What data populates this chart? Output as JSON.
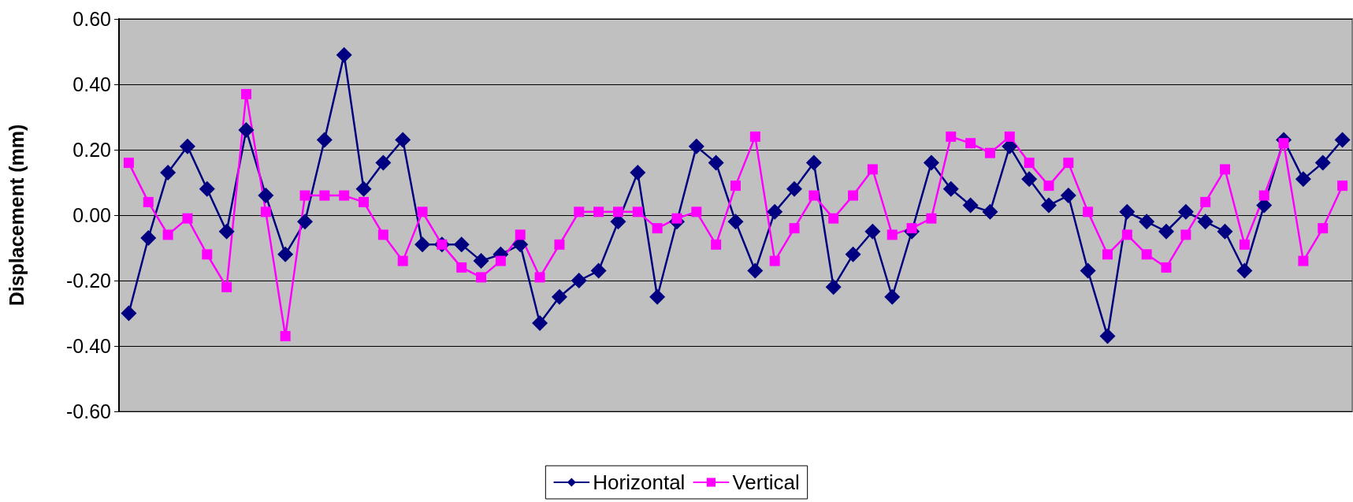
{
  "chart_data": {
    "type": "line",
    "ylabel": "Displacement (mm)",
    "categories": [
      null,
      null,
      null,
      null,
      null,
      null,
      null,
      null,
      null,
      null,
      null,
      null,
      null,
      null,
      null,
      null,
      null,
      null,
      null,
      null,
      null,
      null,
      null,
      null,
      null,
      null,
      null,
      null,
      null,
      null,
      null,
      null,
      null,
      null,
      null,
      null,
      null,
      null,
      null,
      null,
      null,
      null,
      null,
      null,
      null,
      null,
      null,
      null,
      null,
      null,
      null,
      null,
      null,
      null,
      null,
      null,
      null,
      null,
      null,
      null,
      null,
      null,
      null
    ],
    "series": [
      {
        "name": "Horizontal",
        "color": "#000080",
        "marker": "diamond",
        "values": [
          -0.3,
          -0.07,
          0.13,
          0.21,
          0.08,
          -0.05,
          0.26,
          0.06,
          -0.12,
          -0.02,
          0.23,
          0.49,
          0.08,
          0.16,
          0.23,
          -0.09,
          -0.09,
          -0.09,
          -0.14,
          -0.12,
          -0.09,
          -0.33,
          -0.25,
          -0.2,
          -0.17,
          -0.02,
          0.13,
          -0.25,
          -0.02,
          0.21,
          0.16,
          -0.02,
          -0.17,
          0.01,
          0.08,
          0.16,
          -0.22,
          -0.12,
          -0.05,
          -0.25,
          -0.05,
          0.16,
          0.08,
          0.03,
          0.01,
          0.21,
          0.11,
          0.03,
          0.06,
          -0.17,
          -0.37,
          0.01,
          -0.02,
          -0.05,
          0.01,
          -0.02,
          -0.05,
          -0.17,
          0.03,
          0.23,
          0.11,
          0.16,
          0.23
        ]
      },
      {
        "name": "Vertical",
        "color": "#ff00ff",
        "marker": "square",
        "values": [
          0.16,
          0.04,
          -0.06,
          -0.01,
          -0.12,
          -0.22,
          0.37,
          0.01,
          -0.37,
          0.06,
          0.06,
          0.06,
          0.04,
          -0.06,
          -0.14,
          0.01,
          -0.09,
          -0.16,
          -0.19,
          -0.14,
          -0.06,
          -0.19,
          -0.09,
          0.01,
          0.01,
          0.01,
          0.01,
          -0.04,
          -0.01,
          0.01,
          -0.09,
          0.09,
          0.24,
          -0.14,
          -0.04,
          0.06,
          -0.01,
          0.06,
          0.14,
          -0.06,
          -0.04,
          -0.01,
          0.24,
          0.22,
          0.19,
          0.24,
          0.16,
          0.09,
          0.16,
          0.01,
          -0.12,
          -0.06,
          -0.12,
          -0.16,
          -0.06,
          0.04,
          0.14,
          -0.09,
          0.06,
          0.22,
          -0.14,
          -0.04,
          0.09
        ]
      }
    ],
    "ylim": [
      -0.6,
      0.6
    ],
    "yticks": [
      {
        "value": -0.6,
        "label": "-0.60"
      },
      {
        "value": -0.4,
        "label": "-0.40"
      },
      {
        "value": -0.2,
        "label": "-0.20"
      },
      {
        "value": 0,
        "label": "0.00"
      },
      {
        "value": 0.2,
        "label": "0.20"
      },
      {
        "value": 0.4,
        "label": "0.40"
      },
      {
        "value": 0.6,
        "label": "0.60"
      }
    ],
    "grid": "y",
    "legend": "bottom",
    "line_style": "solid"
  }
}
